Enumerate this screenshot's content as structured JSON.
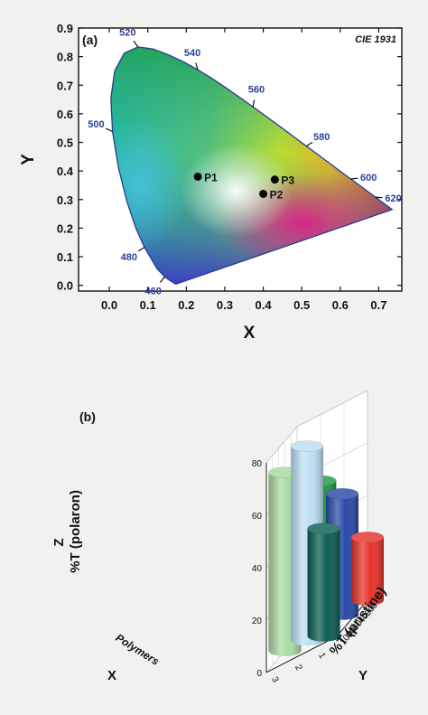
{
  "chart_data": [
    {
      "type": "scatter",
      "panel_label": "(a)",
      "diagram_label": "CIE 1931",
      "xlabel": "X",
      "ylabel": "Y",
      "xlim": [
        -0.08,
        0.76
      ],
      "ylim": [
        -0.02,
        0.9
      ],
      "x_ticks": [
        "0.0",
        "0.1",
        "0.2",
        "0.3",
        "0.4",
        "0.5",
        "0.6",
        "0.7"
      ],
      "y_ticks": [
        "0.0",
        "0.1",
        "0.2",
        "0.3",
        "0.4",
        "0.5",
        "0.6",
        "0.7",
        "0.8",
        "0.9"
      ],
      "locus_labels": [
        {
          "text": "460",
          "x": 0.144,
          "y": 0.03
        },
        {
          "text": "480",
          "x": 0.091,
          "y": 0.133
        },
        {
          "text": "500",
          "x": 0.008,
          "y": 0.538
        },
        {
          "text": "520",
          "x": 0.074,
          "y": 0.834
        },
        {
          "text": "540",
          "x": 0.23,
          "y": 0.754
        },
        {
          "text": "560",
          "x": 0.373,
          "y": 0.624
        },
        {
          "text": "580",
          "x": 0.512,
          "y": 0.487
        },
        {
          "text": "600",
          "x": 0.627,
          "y": 0.372
        },
        {
          "text": "620",
          "x": 0.691,
          "y": 0.308
        }
      ],
      "points": [
        {
          "label": "P1",
          "x": 0.23,
          "y": 0.38
        },
        {
          "label": "P2",
          "x": 0.4,
          "y": 0.32
        },
        {
          "label": "P3",
          "x": 0.43,
          "y": 0.37
        }
      ]
    },
    {
      "type": "bar3d",
      "panel_label": "(b)",
      "xlabel": "X",
      "x_sublabel": "Polymers",
      "ylabel": "Y",
      "y_sublabel": "%T (pristine)",
      "zlabel": "Z",
      "z_sublabel": "%T (polaron)",
      "x_ticks": [
        "1",
        "2",
        "3"
      ],
      "y_ticks": [
        "0",
        "20",
        "40",
        "60",
        "80",
        "100"
      ],
      "z_ticks": [
        "0",
        "20",
        "40",
        "60",
        "80"
      ],
      "zlim": [
        0,
        80
      ],
      "bars": [
        {
          "x": 3,
          "y": 40,
          "z": 68,
          "color": "#a9dba1"
        },
        {
          "x": 2,
          "y": 44,
          "z": 74,
          "color": "#bcdff2"
        },
        {
          "x": 2,
          "y": 2,
          "z": 55,
          "color": "#1f9a3c"
        },
        {
          "x": 1,
          "y": 66,
          "z": 41,
          "color": "#0d5e55"
        },
        {
          "x": 1,
          "y": 6,
          "z": 46,
          "color": "#2a4aa8"
        },
        {
          "x": 0,
          "y": 0,
          "z": 24,
          "color": "#e6332a"
        }
      ]
    }
  ]
}
